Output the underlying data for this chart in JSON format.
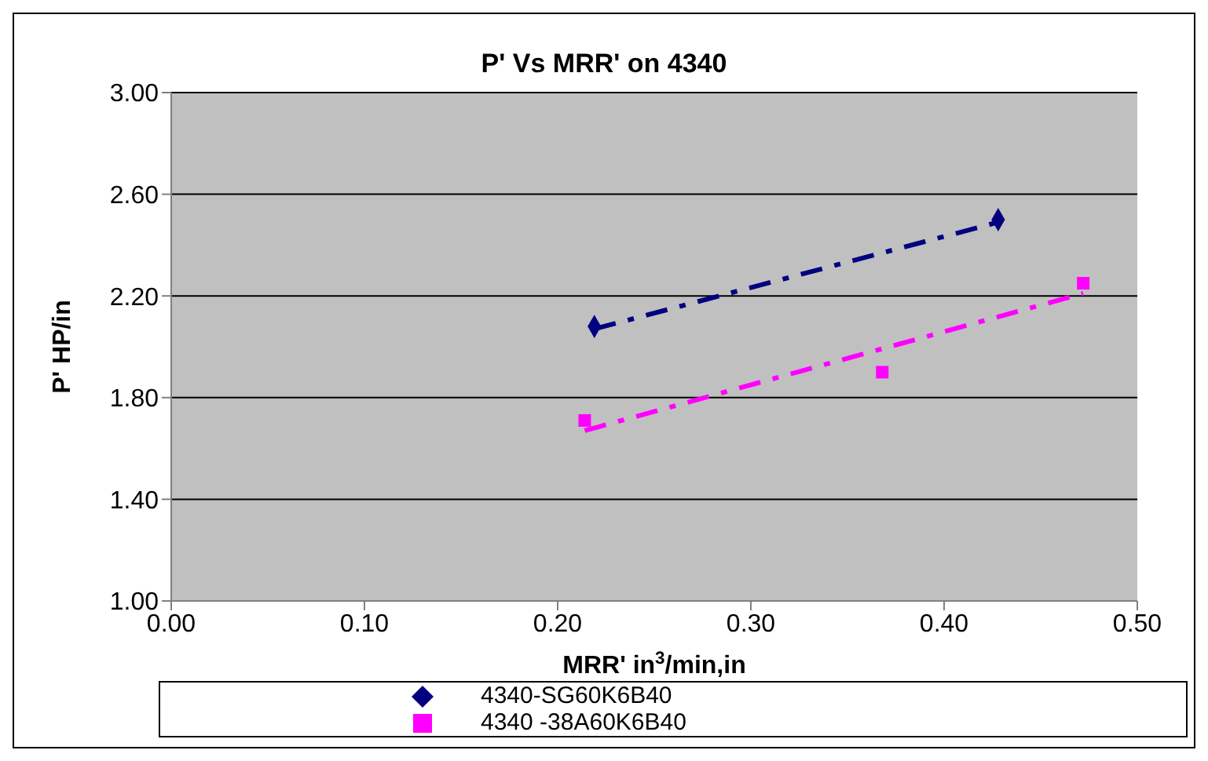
{
  "chart_data": {
    "type": "scatter",
    "title": "P' Vs MRR' on 4340",
    "xlabel": "MRR' in$^{3}$/min,in",
    "ylabel": "P' HP/in",
    "xlim": [
      0,
      0.5
    ],
    "xticks": [
      {
        "value": 0,
        "label": "0.00"
      },
      {
        "value": 0.1,
        "label": "0.10"
      },
      {
        "value": 0.2,
        "label": "0.20"
      },
      {
        "value": 0.3,
        "label": "0.30"
      },
      {
        "value": 0.4,
        "label": "0.40"
      },
      {
        "value": 0.5,
        "label": "0.50"
      }
    ],
    "ylim": [
      1,
      3
    ],
    "yticks": [
      {
        "value": 1,
        "label": "1.00"
      },
      {
        "value": 1.4,
        "label": "1.40"
      },
      {
        "value": 1.8,
        "label": "1.80"
      },
      {
        "value": 2.2,
        "label": "2.20"
      },
      {
        "value": 2.6,
        "label": "2.60"
      },
      {
        "value": 3,
        "label": "3.00"
      }
    ],
    "grid": "y",
    "legend": "bottom",
    "series": [
      {
        "name": "4340-SG60K6B40",
        "marker": "diamond",
        "color": "#000080",
        "x": [
          0.219,
          0.428
        ],
        "values": [
          2.08,
          2.5
        ]
      },
      {
        "name": "4340 -38A60K6B40",
        "marker": "square",
        "color": "#ff00ff",
        "x": [
          0.214,
          0.368,
          0.472
        ],
        "values": [
          1.71,
          1.9,
          2.25
        ]
      },
      {
        "type": "line",
        "marker": "none",
        "line_style": "dashed",
        "color": "#000080",
        "x": [
          0.219,
          0.428
        ],
        "values": [
          2.07,
          2.49
        ]
      },
      {
        "type": "line",
        "marker": "none",
        "line_style": "dashed",
        "color": "#ff00ff",
        "x": [
          0.214,
          0.472
        ],
        "values": [
          1.67,
          2.21
        ]
      }
    ]
  }
}
